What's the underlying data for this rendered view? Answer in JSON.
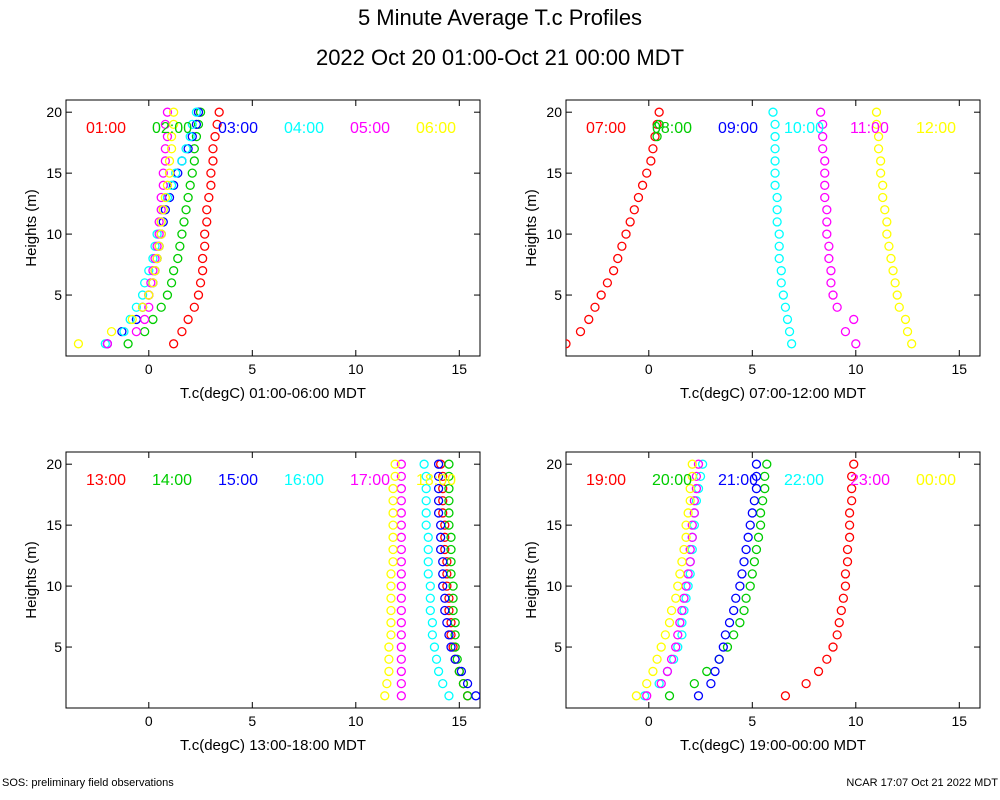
{
  "title": "5 Minute Average T.c Profiles",
  "subtitle": "2022 Oct 20 01:00-Oct 21 00:00 MDT",
  "footer_left": "SOS: preliminary field observations",
  "footer_right": "NCAR 17:07 Oct 21 2022 MDT",
  "series_colors": [
    "#ff0000",
    "#00cc00",
    "#0000ff",
    "#00ffff",
    "#ff00ff",
    "#ffff00"
  ],
  "chart_data": [
    {
      "type": "scatter",
      "xlabel": "T.c(degC) 01:00-06:00 MDT",
      "ylabel": "Heights (m)",
      "xlim": [
        -4,
        16
      ],
      "ylim": [
        0,
        21
      ],
      "xticks": [
        0,
        5,
        10,
        15
      ],
      "yticks": [
        5,
        10,
        15,
        20
      ],
      "series": [
        {
          "name": "01:00",
          "x": [
            1.2,
            1.6,
            1.9,
            2.2,
            2.4,
            2.5,
            2.6,
            2.6,
            2.7,
            2.7,
            2.8,
            2.8,
            2.9,
            3.0,
            3.0,
            3.1,
            3.1,
            3.2,
            3.3,
            3.4
          ],
          "y": [
            1,
            2,
            3,
            4,
            5,
            6,
            7,
            8,
            9,
            10,
            11,
            12,
            13,
            14,
            15,
            16,
            17,
            18,
            19,
            20
          ]
        },
        {
          "name": "02:00",
          "x": [
            -1.0,
            -0.2,
            0.2,
            0.6,
            0.9,
            1.1,
            1.2,
            1.4,
            1.5,
            1.6,
            1.7,
            1.8,
            1.9,
            2.0,
            2.1,
            2.2,
            2.2,
            2.3,
            2.4,
            2.5
          ],
          "y": [
            1,
            2,
            3,
            4,
            5,
            6,
            7,
            8,
            9,
            10,
            11,
            12,
            13,
            14,
            15,
            16,
            17,
            18,
            19,
            20
          ]
        },
        {
          "name": "03:00",
          "x": [
            -2.0,
            -1.3,
            -0.6,
            -0.3,
            0.0,
            0.2,
            0.3,
            0.4,
            0.5,
            0.6,
            0.7,
            0.8,
            1.0,
            1.2,
            1.4,
            1.6,
            1.9,
            2.1,
            2.3,
            2.4
          ],
          "y": [
            1,
            2,
            3,
            4,
            5,
            6,
            7,
            8,
            9,
            10,
            11,
            12,
            13,
            14,
            15,
            16,
            17,
            18,
            19,
            20
          ]
        },
        {
          "name": "04:00",
          "x": [
            -2.1,
            -1.2,
            -0.9,
            -0.6,
            -0.3,
            -0.2,
            0.0,
            0.2,
            0.3,
            0.4,
            0.6,
            0.7,
            0.9,
            1.1,
            1.3,
            1.6,
            1.8,
            2.0,
            2.1,
            2.3
          ],
          "y": [
            1,
            2,
            3,
            4,
            5,
            6,
            7,
            8,
            9,
            10,
            11,
            12,
            13,
            14,
            15,
            16,
            17,
            18,
            19,
            20
          ]
        },
        {
          "name": "05:00",
          "x": [
            -2.0,
            -0.6,
            -0.2,
            0.0,
            0.0,
            0.1,
            0.2,
            0.3,
            0.4,
            0.5,
            0.5,
            0.6,
            0.6,
            0.7,
            0.7,
            0.8,
            0.8,
            0.9,
            0.8,
            0.9
          ],
          "y": [
            1,
            2,
            3,
            4,
            5,
            6,
            7,
            8,
            9,
            10,
            11,
            12,
            13,
            14,
            15,
            16,
            17,
            18,
            19,
            20
          ]
        },
        {
          "name": "06:00",
          "x": [
            -3.4,
            -1.8,
            -0.8,
            -0.3,
            0.0,
            0.2,
            0.3,
            0.4,
            0.5,
            0.6,
            0.6,
            0.7,
            0.8,
            0.9,
            1.0,
            1.0,
            1.1,
            1.1,
            1.2,
            1.2
          ],
          "y": [
            1,
            2,
            3,
            4,
            5,
            6,
            7,
            8,
            9,
            10,
            11,
            12,
            13,
            14,
            15,
            16,
            17,
            18,
            19,
            20
          ]
        }
      ]
    },
    {
      "type": "scatter",
      "xlabel": "T.c(degC) 07:00-12:00 MDT",
      "ylabel": "Heights (m)",
      "xlim": [
        -4,
        16
      ],
      "ylim": [
        0,
        21
      ],
      "xticks": [
        0,
        5,
        10,
        15
      ],
      "yticks": [
        5,
        10,
        15,
        20
      ],
      "series": [
        {
          "name": "07:00",
          "x": [
            -4.0,
            -3.3,
            -2.9,
            -2.6,
            -2.3,
            -2.0,
            -1.7,
            -1.5,
            -1.3,
            -1.1,
            -0.9,
            -0.7,
            -0.5,
            -0.3,
            -0.1,
            0.1,
            0.2,
            0.3,
            0.4,
            0.5
          ],
          "y": [
            1,
            2,
            3,
            4,
            5,
            6,
            7,
            8,
            9,
            10,
            11,
            12,
            13,
            14,
            15,
            16,
            17,
            18,
            19,
            20
          ]
        },
        {
          "name": "08:00",
          "x": [
            0.4,
            0.5
          ],
          "y": [
            18,
            19
          ]
        },
        {
          "name": "09:00",
          "x": [],
          "y": []
        },
        {
          "name": "10:00",
          "x": [
            6.9,
            6.8,
            6.7,
            6.6,
            6.5,
            6.4,
            6.4,
            6.3,
            6.3,
            6.3,
            6.2,
            6.2,
            6.2,
            6.1,
            6.1,
            6.1,
            6.1,
            6.1,
            6.1,
            6.0
          ],
          "y": [
            1,
            2,
            3,
            4,
            5,
            6,
            7,
            8,
            9,
            10,
            11,
            12,
            13,
            14,
            15,
            16,
            17,
            18,
            19,
            20
          ]
        },
        {
          "name": "11:00",
          "x": [
            10.0,
            9.5,
            9.9,
            9.1,
            8.9,
            8.8,
            8.8,
            8.7,
            8.7,
            8.6,
            8.6,
            8.6,
            8.5,
            8.5,
            8.5,
            8.5,
            8.4,
            8.4,
            8.4,
            8.3
          ],
          "y": [
            1,
            2,
            3,
            4,
            5,
            6,
            7,
            8,
            9,
            10,
            11,
            12,
            13,
            14,
            15,
            16,
            17,
            18,
            19,
            20
          ]
        },
        {
          "name": "12:00",
          "x": [
            12.7,
            12.5,
            12.4,
            12.1,
            12.0,
            11.9,
            11.8,
            11.7,
            11.6,
            11.5,
            11.5,
            11.4,
            11.3,
            11.3,
            11.2,
            11.2,
            11.1,
            11.1,
            11.0,
            11.0
          ],
          "y": [
            1,
            2,
            3,
            4,
            5,
            6,
            7,
            8,
            9,
            10,
            11,
            12,
            13,
            14,
            15,
            16,
            17,
            18,
            19,
            20
          ]
        }
      ]
    },
    {
      "type": "scatter",
      "xlabel": "T.c(degC) 13:00-18:00 MDT",
      "ylabel": "Heights (m)",
      "xlim": [
        -4,
        16
      ],
      "ylim": [
        0,
        21
      ],
      "xticks": [
        0,
        5,
        10,
        15
      ],
      "yticks": [
        5,
        10,
        15,
        20
      ],
      "series": [
        {
          "name": "13:00",
          "x": [
            15.4,
            15.2,
            15.0,
            14.8,
            14.7,
            14.6,
            14.6,
            14.5,
            14.5,
            14.4,
            14.4,
            14.4,
            14.3,
            14.3,
            14.3,
            14.2,
            14.2,
            14.2,
            14.2,
            14.1
          ],
          "y": [
            1,
            2,
            3,
            4,
            5,
            6,
            7,
            8,
            9,
            10,
            11,
            12,
            13,
            14,
            15,
            16,
            17,
            18,
            19,
            20
          ]
        },
        {
          "name": "14:00",
          "x": [
            15.4,
            15.2,
            15.0,
            14.9,
            14.8,
            14.8,
            14.8,
            14.7,
            14.7,
            14.7,
            14.6,
            14.6,
            14.6,
            14.6,
            14.5,
            14.5,
            14.5,
            14.5,
            14.5,
            14.5
          ],
          "y": [
            1,
            2,
            3,
            4,
            5,
            6,
            7,
            8,
            9,
            10,
            11,
            12,
            13,
            14,
            15,
            16,
            17,
            18,
            19,
            20
          ]
        },
        {
          "name": "15:00",
          "x": [
            15.8,
            15.4,
            15.1,
            14.8,
            14.6,
            14.5,
            14.4,
            14.3,
            14.3,
            14.2,
            14.2,
            14.2,
            14.1,
            14.1,
            14.1,
            14.0,
            14.0,
            14.0,
            14.0,
            14.0
          ],
          "y": [
            1,
            2,
            3,
            4,
            5,
            6,
            7,
            8,
            9,
            10,
            11,
            12,
            13,
            14,
            15,
            16,
            17,
            18,
            19,
            20
          ]
        },
        {
          "name": "16:00",
          "x": [
            14.5,
            14.2,
            14.0,
            13.9,
            13.8,
            13.7,
            13.7,
            13.6,
            13.6,
            13.6,
            13.5,
            13.5,
            13.5,
            13.5,
            13.4,
            13.4,
            13.4,
            13.4,
            13.4,
            13.3
          ],
          "y": [
            1,
            2,
            3,
            4,
            5,
            6,
            7,
            8,
            9,
            10,
            11,
            12,
            13,
            14,
            15,
            16,
            17,
            18,
            19,
            20
          ]
        },
        {
          "name": "17:00",
          "x": [
            12.2,
            12.2,
            12.2,
            12.2,
            12.2,
            12.2,
            12.2,
            12.2,
            12.2,
            12.2,
            12.2,
            12.2,
            12.2,
            12.2,
            12.2,
            12.2,
            12.2,
            12.2,
            12.2,
            12.2
          ],
          "y": [
            1,
            2,
            3,
            4,
            5,
            6,
            7,
            8,
            9,
            10,
            11,
            12,
            13,
            14,
            15,
            16,
            17,
            18,
            19,
            20
          ]
        },
        {
          "name": "18:00",
          "x": [
            11.4,
            11.5,
            11.6,
            11.6,
            11.6,
            11.7,
            11.7,
            11.7,
            11.7,
            11.7,
            11.7,
            11.8,
            11.8,
            11.8,
            11.8,
            11.8,
            11.8,
            11.8,
            11.9,
            11.9
          ],
          "y": [
            1,
            2,
            3,
            4,
            5,
            6,
            7,
            8,
            9,
            10,
            11,
            12,
            13,
            14,
            15,
            16,
            17,
            18,
            19,
            20
          ]
        }
      ]
    },
    {
      "type": "scatter",
      "xlabel": "T.c(degC) 19:00-00:00 MDT",
      "ylabel": "Heights (m)",
      "xlim": [
        -4,
        16
      ],
      "ylim": [
        0,
        21
      ],
      "xticks": [
        0,
        5,
        10,
        15
      ],
      "yticks": [
        5,
        10,
        15,
        20
      ],
      "series": [
        {
          "name": "19:00",
          "x": [
            6.6,
            7.6,
            8.2,
            8.6,
            8.9,
            9.1,
            9.2,
            9.3,
            9.4,
            9.5,
            9.5,
            9.6,
            9.6,
            9.7,
            9.7,
            9.7,
            9.8,
            9.8,
            9.8,
            9.9
          ],
          "y": [
            1,
            2,
            3,
            4,
            5,
            6,
            7,
            8,
            9,
            10,
            11,
            12,
            13,
            14,
            15,
            16,
            17,
            18,
            19,
            20
          ]
        },
        {
          "name": "20:00",
          "x": [
            1.0,
            2.2,
            2.8,
            3.4,
            3.8,
            4.1,
            4.4,
            4.6,
            4.7,
            4.9,
            5.0,
            5.1,
            5.2,
            5.3,
            5.4,
            5.4,
            5.5,
            5.6,
            5.6,
            5.7
          ],
          "y": [
            1,
            2,
            3,
            4,
            5,
            6,
            7,
            8,
            9,
            10,
            11,
            12,
            13,
            14,
            15,
            16,
            17,
            18,
            19,
            20
          ]
        },
        {
          "name": "21:00",
          "x": [
            2.4,
            3.0,
            3.2,
            3.4,
            3.6,
            3.7,
            3.9,
            4.1,
            4.2,
            4.4,
            4.5,
            4.6,
            4.7,
            4.8,
            4.9,
            5.0,
            5.1,
            5.2,
            5.2,
            5.2
          ],
          "y": [
            1,
            2,
            3,
            4,
            5,
            6,
            7,
            8,
            9,
            10,
            11,
            12,
            13,
            14,
            15,
            16,
            17,
            18,
            19,
            20
          ]
        },
        {
          "name": "22:00",
          "x": [
            -0.2,
            0.5,
            0.9,
            1.2,
            1.4,
            1.6,
            1.6,
            1.7,
            1.8,
            1.9,
            2.0,
            2.0,
            2.1,
            2.1,
            2.2,
            2.2,
            2.3,
            2.4,
            2.5,
            2.6
          ],
          "y": [
            1,
            2,
            3,
            4,
            5,
            6,
            7,
            8,
            9,
            10,
            11,
            12,
            13,
            14,
            15,
            16,
            17,
            18,
            19,
            20
          ]
        },
        {
          "name": "23:00",
          "x": [
            -0.1,
            0.6,
            0.9,
            1.1,
            1.3,
            1.4,
            1.5,
            1.6,
            1.7,
            1.8,
            1.9,
            2.0,
            2.0,
            2.1,
            2.1,
            2.2,
            2.2,
            2.3,
            2.3,
            2.4
          ],
          "y": [
            1,
            2,
            3,
            4,
            5,
            6,
            7,
            8,
            9,
            10,
            11,
            12,
            13,
            14,
            15,
            16,
            17,
            18,
            19,
            20
          ]
        },
        {
          "name": "00:00",
          "x": [
            -0.6,
            -0.1,
            0.2,
            0.4,
            0.6,
            0.8,
            1.0,
            1.1,
            1.3,
            1.4,
            1.5,
            1.6,
            1.7,
            1.8,
            1.8,
            1.9,
            2.0,
            2.0,
            2.1,
            2.1
          ],
          "y": [
            1,
            2,
            3,
            4,
            5,
            6,
            7,
            8,
            9,
            10,
            11,
            12,
            13,
            14,
            15,
            16,
            17,
            18,
            19,
            20
          ]
        }
      ]
    }
  ]
}
